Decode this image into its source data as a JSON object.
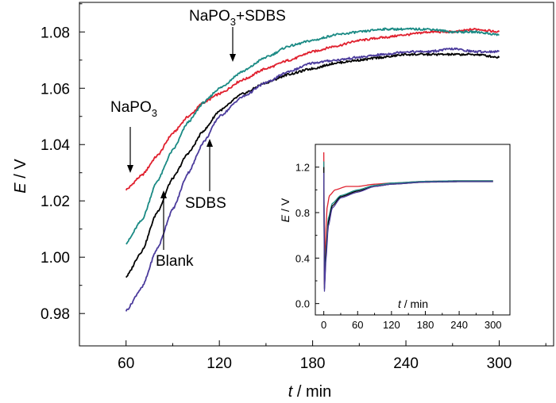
{
  "chart_data": [
    {
      "type": "line",
      "xlabel": {
        "italic": "t",
        "rest": " / min"
      },
      "ylabel": {
        "italic": "E",
        "rest": " / V"
      },
      "xlim": [
        30,
        335
      ],
      "ylim": [
        0.9685,
        1.0905
      ],
      "xticks": [
        60,
        120,
        180,
        240,
        300
      ],
      "yticks": [
        0.98,
        1.0,
        1.02,
        1.04,
        1.06,
        1.08
      ],
      "ytick_labels": [
        "0.98",
        "1.00",
        "1.02",
        "1.04",
        "1.06",
        "1.08"
      ],
      "xtick_labels": [
        "60",
        "120",
        "180",
        "240",
        "300"
      ],
      "series": [
        {
          "name": "NaPO3",
          "color": "#e0202e",
          "points": [
            [
              60,
              1.024
            ],
            [
              70,
              1.029
            ],
            [
              80,
              1.036
            ],
            [
              90,
              1.044
            ],
            [
              100,
              1.05
            ],
            [
              110,
              1.055
            ],
            [
              120,
              1.058
            ],
            [
              135,
              1.063
            ],
            [
              150,
              1.067
            ],
            [
              165,
              1.07
            ],
            [
              180,
              1.073
            ],
            [
              195,
              1.075
            ],
            [
              210,
              1.077
            ],
            [
              225,
              1.078
            ],
            [
              240,
              1.079
            ],
            [
              255,
              1.08
            ],
            [
              270,
              1.08
            ],
            [
              285,
              1.081
            ],
            [
              300,
              1.08
            ]
          ]
        },
        {
          "name": "NaPO3+SDBS",
          "color": "#1a8a84",
          "points": [
            [
              60,
              1.005
            ],
            [
              70,
              1.013
            ],
            [
              80,
              1.027
            ],
            [
              90,
              1.038
            ],
            [
              100,
              1.048
            ],
            [
              110,
              1.055
            ],
            [
              120,
              1.06
            ],
            [
              135,
              1.066
            ],
            [
              150,
              1.071
            ],
            [
              165,
              1.075
            ],
            [
              180,
              1.077
            ],
            [
              195,
              1.079
            ],
            [
              210,
              1.08
            ],
            [
              225,
              1.081
            ],
            [
              240,
              1.081
            ],
            [
              255,
              1.081
            ],
            [
              270,
              1.08
            ],
            [
              285,
              1.08
            ],
            [
              300,
              1.079
            ]
          ]
        },
        {
          "name": "Blank",
          "color": "#000000",
          "points": [
            [
              60,
              0.993
            ],
            [
              70,
              1.002
            ],
            [
              80,
              1.016
            ],
            [
              90,
              1.028
            ],
            [
              100,
              1.037
            ],
            [
              110,
              1.045
            ],
            [
              120,
              1.052
            ],
            [
              135,
              1.058
            ],
            [
              150,
              1.062
            ],
            [
              165,
              1.065
            ],
            [
              180,
              1.067
            ],
            [
              195,
              1.069
            ],
            [
              210,
              1.07
            ],
            [
              225,
              1.071
            ],
            [
              240,
              1.072
            ],
            [
              255,
              1.072
            ],
            [
              270,
              1.072
            ],
            [
              285,
              1.072
            ],
            [
              300,
              1.071
            ]
          ]
        },
        {
          "name": "SDBS",
          "color": "#4b3b9c",
          "points": [
            [
              60,
              0.981
            ],
            [
              70,
              0.989
            ],
            [
              80,
              1.003
            ],
            [
              90,
              1.017
            ],
            [
              100,
              1.03
            ],
            [
              110,
              1.041
            ],
            [
              120,
              1.05
            ],
            [
              135,
              1.057
            ],
            [
              150,
              1.062
            ],
            [
              165,
              1.066
            ],
            [
              180,
              1.069
            ],
            [
              195,
              1.07
            ],
            [
              210,
              1.071
            ],
            [
              225,
              1.072
            ],
            [
              240,
              1.073
            ],
            [
              255,
              1.073
            ],
            [
              270,
              1.074
            ],
            [
              285,
              1.073
            ],
            [
              300,
              1.073
            ]
          ]
        }
      ],
      "annotations": [
        {
          "label_main": "NaPO",
          "label_sub": "3",
          "label_tail": "",
          "target": "NaPO3"
        },
        {
          "label_main": "NaPO",
          "label_sub": "3",
          "label_tail": "+SDBS",
          "target": "NaPO3+SDBS"
        },
        {
          "label_main": "Blank",
          "label_sub": "",
          "label_tail": "",
          "target": "Blank"
        },
        {
          "label_main": "SDBS",
          "label_sub": "",
          "label_tail": "",
          "target": "SDBS"
        }
      ]
    },
    {
      "type": "line",
      "role": "inset",
      "xlabel": {
        "italic": "t",
        "rest": " / min"
      },
      "ylabel": {
        "italic": "E",
        "rest": " / V"
      },
      "xlim": [
        -15,
        330
      ],
      "ylim": [
        -0.1,
        1.4
      ],
      "xticks": [
        0,
        60,
        120,
        180,
        240,
        300
      ],
      "xtick_labels": [
        "0",
        "60",
        "120",
        "180",
        "240",
        "300"
      ],
      "yticks": [
        0.0,
        0.4,
        0.8,
        1.2
      ],
      "ytick_labels": [
        "0.0",
        "0.4",
        "0.8",
        "1.2"
      ],
      "series": [
        {
          "name": "NaPO3",
          "color": "#e0202e",
          "points": [
            [
              0,
              1.33
            ],
            [
              0.5,
              0.3
            ],
            [
              1,
              0.15
            ],
            [
              3,
              0.6
            ],
            [
              6,
              0.85
            ],
            [
              10,
              0.95
            ],
            [
              20,
              1.0
            ],
            [
              40,
              1.03
            ],
            [
              60,
              1.03
            ],
            [
              90,
              1.05
            ],
            [
              120,
              1.06
            ],
            [
              180,
              1.075
            ],
            [
              240,
              1.08
            ],
            [
              300,
              1.08
            ]
          ]
        },
        {
          "name": "NaPO3+SDBS",
          "color": "#1a8a84",
          "points": [
            [
              0,
              1.25
            ],
            [
              0.5,
              0.25
            ],
            [
              1,
              0.2
            ],
            [
              4,
              0.5
            ],
            [
              8,
              0.75
            ],
            [
              15,
              0.88
            ],
            [
              30,
              0.95
            ],
            [
              60,
              1.0
            ],
            [
              90,
              1.04
            ],
            [
              120,
              1.06
            ],
            [
              180,
              1.075
            ],
            [
              240,
              1.08
            ],
            [
              300,
              1.08
            ]
          ]
        },
        {
          "name": "Blank",
          "color": "#000000",
          "points": [
            [
              0,
              1.2
            ],
            [
              0.5,
              0.3
            ],
            [
              1,
              0.12
            ],
            [
              4,
              0.45
            ],
            [
              8,
              0.72
            ],
            [
              15,
              0.86
            ],
            [
              30,
              0.94
            ],
            [
              60,
              0.99
            ],
            [
              90,
              1.03
            ],
            [
              120,
              1.05
            ],
            [
              180,
              1.068
            ],
            [
              240,
              1.072
            ],
            [
              300,
              1.072
            ]
          ]
        },
        {
          "name": "SDBS",
          "color": "#4b3b9c",
          "points": [
            [
              0,
              1.15
            ],
            [
              0.5,
              0.25
            ],
            [
              1,
              0.1
            ],
            [
              4,
              0.4
            ],
            [
              8,
              0.68
            ],
            [
              15,
              0.84
            ],
            [
              30,
              0.93
            ],
            [
              60,
              0.98
            ],
            [
              90,
              1.03
            ],
            [
              120,
              1.05
            ],
            [
              180,
              1.069
            ],
            [
              240,
              1.073
            ],
            [
              300,
              1.073
            ]
          ]
        }
      ]
    }
  ]
}
